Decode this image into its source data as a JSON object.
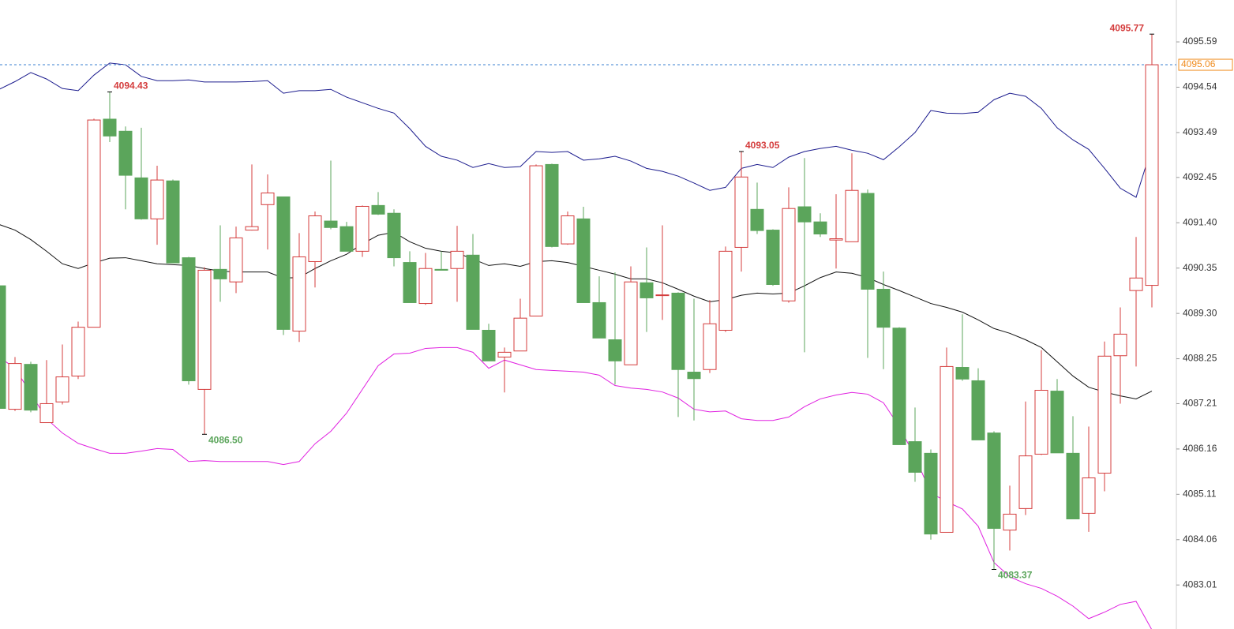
{
  "chart_data": {
    "type": "candlestick",
    "ylim": [
      4081.99,
      4096.56
    ],
    "yticks": [
      4083.01,
      4084.06,
      4085.11,
      4086.16,
      4087.21,
      4088.25,
      {
        "value": 4089.3,
        "label": "4089.30"
      },
      4090.35,
      {
        "value": 4091.4,
        "label": "4091.40"
      },
      4092.45,
      4093.49,
      4094.54,
      4095.59
    ],
    "up_color": "#d43c3c",
    "down_color": "#5ba55b",
    "candles": {
      "open": [
        4089.94,
        4087.08,
        4088.12,
        4086.77,
        4087.25,
        4087.85,
        4088.98,
        4093.8,
        4093.52,
        4092.44,
        4091.49,
        4092.37,
        4090.59,
        4087.54,
        4090.32,
        4090.03,
        4091.23,
        4091.82,
        4092.0,
        4088.89,
        4090.5,
        4091.44,
        4091.31,
        4090.74,
        4091.8,
        4091.62,
        4090.48,
        4089.53,
        4090.32,
        4090.34,
        4090.65,
        4088.91,
        4088.29,
        4088.43,
        4089.24,
        4092.75,
        4090.91,
        4091.49,
        4089.55,
        4088.69,
        4088.11,
        4090.01,
        4089.72,
        4089.77,
        4087.94,
        4088.0,
        4088.91,
        4090.83,
        4091.71,
        4091.23,
        4089.59,
        4091.77,
        4091.42,
        4091.0,
        4090.96,
        4092.08,
        4089.86,
        4088.96,
        4086.33,
        4086.06,
        4084.23,
        4088.05,
        4087.74,
        4086.53,
        4084.28,
        4084.78,
        4086.04,
        4087.5,
        4086.06,
        4084.67,
        4085.6,
        4088.32,
        4089.83,
        4089.95
      ],
      "high": [
        4089.97,
        4088.29,
        4088.18,
        4088.22,
        4088.58,
        4089.11,
        4093.81,
        4094.43,
        4093.63,
        4093.6,
        4092.72,
        4092.4,
        4090.61,
        4090.37,
        4091.34,
        4091.31,
        4092.75,
        4092.52,
        4092.0,
        4091.16,
        4091.66,
        4092.84,
        4091.42,
        4091.8,
        4092.11,
        4091.71,
        4090.74,
        4090.7,
        4090.74,
        4091.33,
        4091.14,
        4089.06,
        4088.51,
        4089.64,
        4092.75,
        4092.77,
        4091.66,
        4091.77,
        4090.16,
        4090.25,
        4090.39,
        4090.83,
        4091.34,
        4089.79,
        4089.64,
        4089.61,
        4090.85,
        4093.05,
        4092.33,
        4091.25,
        4092.22,
        4092.9,
        4091.62,
        4092.06,
        4093.01,
        4092.17,
        4090.27,
        4088.98,
        4087.12,
        4086.15,
        4088.51,
        4089.28,
        4088.03,
        4086.57,
        4085.31,
        4087.26,
        4088.45,
        4087.78,
        4086.92,
        4086.68,
        4088.65,
        4089.44,
        4091.07,
        4095.77
      ],
      "low": [
        4087.1,
        4087.04,
        4087.01,
        4086.77,
        4087.19,
        4087.78,
        4088.98,
        4093.27,
        4091.71,
        4091.47,
        4090.89,
        4090.47,
        4087.65,
        4086.5,
        4089.57,
        4089.77,
        4091.22,
        4090.78,
        4088.8,
        4088.64,
        4089.9,
        4091.25,
        4090.74,
        4090.61,
        4091.58,
        4090.39,
        4089.55,
        4089.5,
        4090.3,
        4089.57,
        4088.93,
        4088.2,
        4087.47,
        4088.43,
        4089.24,
        4090.83,
        4090.89,
        4089.55,
        4088.73,
        4087.65,
        4088.11,
        4088.87,
        4089.15,
        4086.9,
        4086.82,
        4087.92,
        4088.87,
        4090.27,
        4091.14,
        4089.94,
        4089.55,
        4088.4,
        4091.07,
        4090.34,
        4090.96,
        4088.27,
        4088.01,
        4086.26,
        4085.4,
        4084.06,
        4084.23,
        4087.74,
        4086.37,
        4083.37,
        4083.81,
        4084.63,
        4086.02,
        4086.07,
        4084.54,
        4084.24,
        4085.18,
        4087.21,
        4088.07,
        4089.44
      ],
      "close": [
        4087.1,
        4088.14,
        4087.06,
        4087.21,
        4087.83,
        4088.98,
        4093.78,
        4093.41,
        4092.5,
        4091.49,
        4092.39,
        4090.47,
        4087.74,
        4090.3,
        4090.1,
        4091.05,
        4091.31,
        4092.09,
        4088.93,
        4090.61,
        4091.56,
        4091.29,
        4090.74,
        4091.78,
        4091.6,
        4090.59,
        4089.55,
        4090.34,
        4090.3,
        4090.74,
        4088.93,
        4088.2,
        4088.4,
        4089.19,
        4092.72,
        4090.85,
        4091.56,
        4089.55,
        4088.73,
        4088.2,
        4090.03,
        4089.66,
        4089.73,
        4088.0,
        4087.79,
        4089.06,
        4090.74,
        4092.46,
        4091.22,
        4089.97,
        4091.73,
        4091.42,
        4091.14,
        4091.03,
        4092.15,
        4089.86,
        4088.98,
        4086.26,
        4085.62,
        4084.19,
        4088.07,
        4087.78,
        4086.37,
        4084.32,
        4084.65,
        4086.0,
        4087.52,
        4086.07,
        4084.54,
        4085.49,
        4088.31,
        4088.82,
        4090.12,
        4095.06
      ]
    },
    "bands": [
      {
        "color": "#1c1c8e",
        "values": [
          4094.49,
          4094.67,
          4094.88,
          4094.73,
          4094.51,
          4094.46,
          4094.82,
          4095.1,
          4095.06,
          4094.79,
          4094.69,
          4094.69,
          4094.71,
          4094.66,
          4094.66,
          4094.66,
          4094.67,
          4094.69,
          4094.4,
          4094.46,
          4094.46,
          4094.49,
          4094.31,
          4094.18,
          4094.05,
          4093.94,
          4093.58,
          4093.17,
          4092.94,
          4092.85,
          4092.68,
          4092.77,
          4092.68,
          4092.7,
          4093.05,
          4093.03,
          4093.05,
          4092.85,
          4092.88,
          4092.94,
          4092.83,
          4092.66,
          4092.59,
          4092.48,
          4092.32,
          4092.15,
          4092.22,
          4092.66,
          4092.75,
          4092.68,
          4092.92,
          4093.05,
          4093.12,
          4093.17,
          4093.08,
          4093.01,
          4092.86,
          4093.16,
          4093.49,
          4094.0,
          4093.94,
          4093.93,
          4093.96,
          4094.25,
          4094.4,
          4094.33,
          4094.05,
          4093.6,
          4093.32,
          4093.1,
          4092.66,
          4092.2,
          4091.99,
          4093.16
        ]
      },
      {
        "color": "#111111",
        "values": [
          4091.36,
          4091.23,
          4091.01,
          4090.74,
          4090.45,
          4090.34,
          4090.47,
          4090.58,
          4090.59,
          4090.52,
          4090.45,
          4090.43,
          4090.41,
          4090.34,
          4090.28,
          4090.26,
          4090.26,
          4090.26,
          4090.12,
          4090.13,
          4090.34,
          4090.52,
          4090.67,
          4090.91,
          4091.11,
          4091.18,
          4090.96,
          4090.81,
          4090.74,
          4090.7,
          4090.56,
          4090.41,
          4090.45,
          4090.39,
          4090.5,
          4090.52,
          4090.48,
          4090.39,
          4090.3,
          4090.21,
          4090.1,
          4090.1,
          4090.01,
          4089.86,
          4089.7,
          4089.57,
          4089.62,
          4089.72,
          4089.77,
          4089.75,
          4089.77,
          4089.94,
          4090.13,
          4090.26,
          4090.23,
          4090.13,
          4089.97,
          4089.83,
          4089.68,
          4089.53,
          4089.44,
          4089.33,
          4089.15,
          4088.95,
          4088.84,
          4088.69,
          4088.51,
          4088.18,
          4087.85,
          4087.59,
          4087.48,
          4087.39,
          4087.32,
          4087.5
        ]
      },
      {
        "color": "#e020e0",
        "values": [
          4088.29,
          4088.03,
          4087.45,
          4086.86,
          4086.53,
          4086.29,
          4086.17,
          4086.06,
          4086.06,
          4086.11,
          4086.17,
          4086.15,
          4085.87,
          4085.89,
          4085.87,
          4085.87,
          4085.87,
          4085.87,
          4085.8,
          4085.87,
          4086.28,
          4086.57,
          4086.99,
          4087.54,
          4088.09,
          4088.36,
          4088.38,
          4088.49,
          4088.51,
          4088.51,
          4088.4,
          4088.03,
          4088.22,
          4088.11,
          4088.0,
          4087.98,
          4087.96,
          4087.94,
          4087.87,
          4087.63,
          4087.57,
          4087.54,
          4087.48,
          4087.34,
          4087.08,
          4087.02,
          4087.04,
          4086.86,
          4086.82,
          4086.82,
          4086.9,
          4087.14,
          4087.32,
          4087.41,
          4087.47,
          4087.43,
          4087.23,
          4086.68,
          4085.98,
          4085.14,
          4084.94,
          4084.77,
          4084.37,
          4083.53,
          4083.2,
          4083.04,
          4082.93,
          4082.75,
          4082.52,
          4082.23,
          4082.38,
          4082.56,
          4082.63,
          4081.97
        ]
      }
    ],
    "annotations": [
      {
        "text": "4094.43",
        "at": "high",
        "candle": 7
      },
      {
        "text": "4086.50",
        "at": "low",
        "candle": 13
      },
      {
        "text": "4093.05",
        "at": "high",
        "candle": 47
      },
      {
        "text": "4083.37",
        "at": "low",
        "candle": 63
      },
      {
        "text": "4095.77",
        "at": "high",
        "candle": 73
      }
    ],
    "last_price": {
      "value": 4095.06,
      "label": "4095.06",
      "color": "#f08c1e",
      "line_color": "#3a7fd0"
    }
  }
}
